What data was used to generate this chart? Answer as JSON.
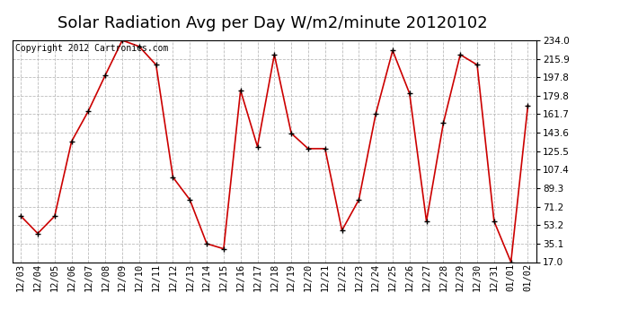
{
  "title": "Solar Radiation Avg per Day W/m2/minute 20120102",
  "copyright_text": "Copyright 2012 Cartronics.com",
  "dates": [
    "12/03",
    "12/04",
    "12/05",
    "12/06",
    "12/07",
    "12/08",
    "12/09",
    "12/10",
    "12/11",
    "12/12",
    "12/13",
    "12/14",
    "12/15",
    "12/16",
    "12/17",
    "12/18",
    "12/19",
    "12/20",
    "12/21",
    "12/22",
    "12/23",
    "12/24",
    "12/25",
    "12/26",
    "12/27",
    "12/28",
    "12/29",
    "12/30",
    "12/31",
    "01/01",
    "01/02"
  ],
  "values": [
    62,
    45,
    62,
    135,
    165,
    200,
    234,
    228,
    210,
    100,
    78,
    35,
    30,
    185,
    130,
    220,
    143,
    128,
    128,
    48,
    78,
    162,
    224,
    182,
    57,
    153,
    220,
    210,
    57,
    17,
    170
  ],
  "line_color": "#cc0000",
  "marker_color": "#000000",
  "bg_color": "#ffffff",
  "plot_bg_color": "#ffffff",
  "grid_color": "#bbbbbb",
  "yticks": [
    17.0,
    35.1,
    53.2,
    71.2,
    89.3,
    107.4,
    125.5,
    143.6,
    161.7,
    179.8,
    197.8,
    215.9,
    234.0
  ],
  "ylim": [
    17.0,
    234.0
  ],
  "title_fontsize": 13,
  "tick_fontsize": 7.5,
  "copyright_fontsize": 7
}
